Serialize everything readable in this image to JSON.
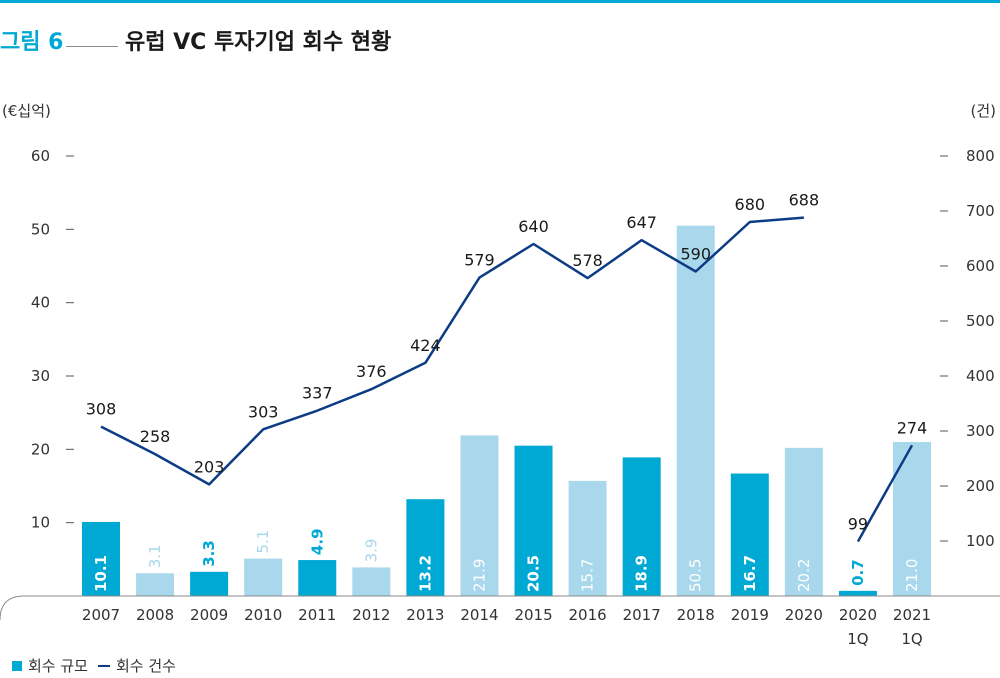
{
  "header": {
    "figure_label": "그림 6",
    "title": "유럽 VC 투자기업 회수 현황"
  },
  "units": {
    "left": "(€십억)",
    "right": "(건)"
  },
  "legend": {
    "bar_label": "회수 규모",
    "line_label": "회수 건수"
  },
  "colors": {
    "accent": "#00a9d4",
    "bar_dark": "#00a9d4",
    "bar_light": "#a9d8ec",
    "line": "#0d3c85"
  },
  "chart_data": {
    "type": "bar+line",
    "categories": [
      "2007",
      "2008",
      "2009",
      "2010",
      "2011",
      "2012",
      "2013",
      "2014",
      "2015",
      "2016",
      "2017",
      "2018",
      "2019",
      "2020",
      "2020\n1Q",
      "2021\n1Q"
    ],
    "series": [
      {
        "name": "회수 규모",
        "type": "bar",
        "axis": "left",
        "values": [
          10.1,
          3.1,
          3.3,
          5.1,
          4.9,
          3.9,
          13.2,
          21.9,
          20.5,
          15.7,
          18.9,
          50.5,
          16.7,
          20.2,
          0.7,
          21.0
        ],
        "labels": [
          "10.1",
          "3.1",
          "3.3",
          "5.1",
          "4.9",
          "3.9",
          "13.2",
          "21.9",
          "20.5",
          "15.7",
          "18.9",
          "50.5",
          "16.7",
          "20.2",
          "0.7",
          "21.0"
        ],
        "shade": [
          "dark",
          "light",
          "dark",
          "light",
          "dark",
          "light",
          "dark",
          "light",
          "dark",
          "light",
          "dark",
          "light",
          "dark",
          "light",
          "dark",
          "light"
        ]
      },
      {
        "name": "회수 건수",
        "type": "line",
        "axis": "right",
        "values": [
          308,
          258,
          203,
          303,
          337,
          376,
          424,
          579,
          640,
          578,
          647,
          590,
          680,
          688,
          99,
          274
        ],
        "segments": [
          [
            0,
            13
          ],
          [
            14,
            15
          ]
        ]
      }
    ],
    "y_left": {
      "min": 0,
      "max": 60,
      "ticks": [
        10,
        20,
        30,
        40,
        50,
        60
      ]
    },
    "y_right": {
      "min": 0,
      "max": 800,
      "ticks": [
        100,
        200,
        300,
        400,
        500,
        600,
        700,
        800
      ]
    },
    "legend_position": "bottom-left"
  }
}
